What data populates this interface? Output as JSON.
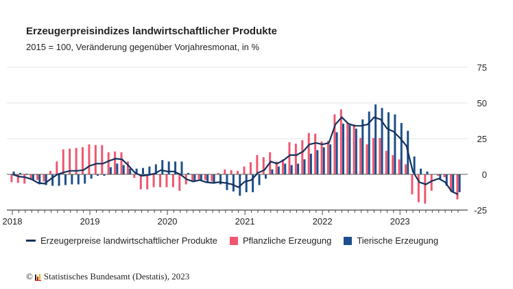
{
  "header": {
    "title": "Erzeugerpreisindizes landwirtschaftlicher Produkte",
    "subtitle": "2015 = 100, Veränderung gegenüber Vorjahresmonat, in %"
  },
  "colors": {
    "line": "#12315c",
    "pink": "#f0566f",
    "blue": "#1c4f8b"
  },
  "chart_data": {
    "type": "bar+line",
    "x_start": "2018-01",
    "x_end": "2023-10",
    "x_tick_labels": [
      "2018",
      "2019",
      "2020",
      "2021",
      "2022",
      "2023"
    ],
    "y_tick_labels": [
      "75",
      "50",
      "25",
      "0",
      "-25"
    ],
    "ylim": [
      -25,
      75
    ],
    "grid": true,
    "legend_position": "bottom",
    "series": [
      {
        "name": "Erzeugerpreise landwirtschaftlicher Produkte",
        "type": "line",
        "values": [
          0,
          -1.5,
          -2,
          -3.5,
          -6,
          -6.5,
          -3,
          0,
          1.5,
          2.5,
          2.5,
          3,
          6,
          7.5,
          7.5,
          9.5,
          11,
          10.5,
          6,
          1,
          -1,
          -0.5,
          0.5,
          3,
          2,
          2,
          0,
          -3.5,
          -5,
          -4,
          -5.5,
          -6,
          -5.5,
          -6,
          -7,
          -9,
          -5,
          -4,
          1,
          3,
          9,
          7.5,
          10,
          13.5,
          13.5,
          16,
          21,
          22,
          21,
          22,
          35,
          40,
          35.5,
          34,
          34,
          35,
          40,
          38.5,
          32,
          30,
          25.5,
          20,
          2,
          -5.5,
          -7,
          -4.5,
          -3,
          -5.5,
          -12,
          -14
        ]
      },
      {
        "name": "Pflanzliche Erzeugung",
        "type": "bar",
        "values": [
          -5.5,
          -6,
          -6.5,
          -3,
          -4,
          -5,
          2.5,
          9,
          17.5,
          18,
          18.5,
          19,
          21,
          20.5,
          20.5,
          15.5,
          16,
          15.5,
          9,
          -2.5,
          -10.5,
          -10.5,
          -9,
          -9,
          -9,
          -9,
          -11.5,
          -7,
          -5,
          -3.5,
          -4,
          -5,
          1,
          3.5,
          3,
          2.5,
          5.5,
          8.5,
          13.5,
          12,
          15.5,
          9,
          10.5,
          22.5,
          21.5,
          24,
          29,
          28.5,
          23,
          23.5,
          42,
          45.5,
          36,
          35,
          25.5,
          21,
          25.5,
          25.5,
          16.5,
          13.5,
          10.5,
          7,
          -14,
          -19.5,
          -20.5,
          -11.5,
          -1,
          -2,
          -12,
          -17.5
        ]
      },
      {
        "name": "Tierische Erzeugung",
        "type": "bar",
        "values": [
          2,
          1,
          0.5,
          -4,
          -7,
          -7.5,
          -8,
          -8,
          -7.5,
          -7,
          -7,
          -6.5,
          -3,
          -1,
          -1,
          5,
          7.5,
          6.5,
          4,
          4,
          4.5,
          5.5,
          7,
          10,
          9,
          9,
          9,
          1,
          -5,
          -4,
          -6,
          -6.5,
          -7,
          -11,
          -12,
          -15,
          -12.5,
          -12.5,
          -7.5,
          -3,
          3.5,
          5.5,
          7.5,
          6.5,
          7.5,
          10.5,
          14.5,
          17,
          19,
          21,
          29.5,
          35.5,
          34.5,
          32,
          38.5,
          44,
          49,
          46.5,
          43.5,
          42,
          36,
          30.5,
          12.5,
          4,
          2,
          0,
          -3.5,
          -8,
          -12,
          -12.5
        ]
      }
    ]
  },
  "footer": {
    "copyright": "©",
    "source": "Statistisches Bundesamt (Destatis), 2023"
  }
}
